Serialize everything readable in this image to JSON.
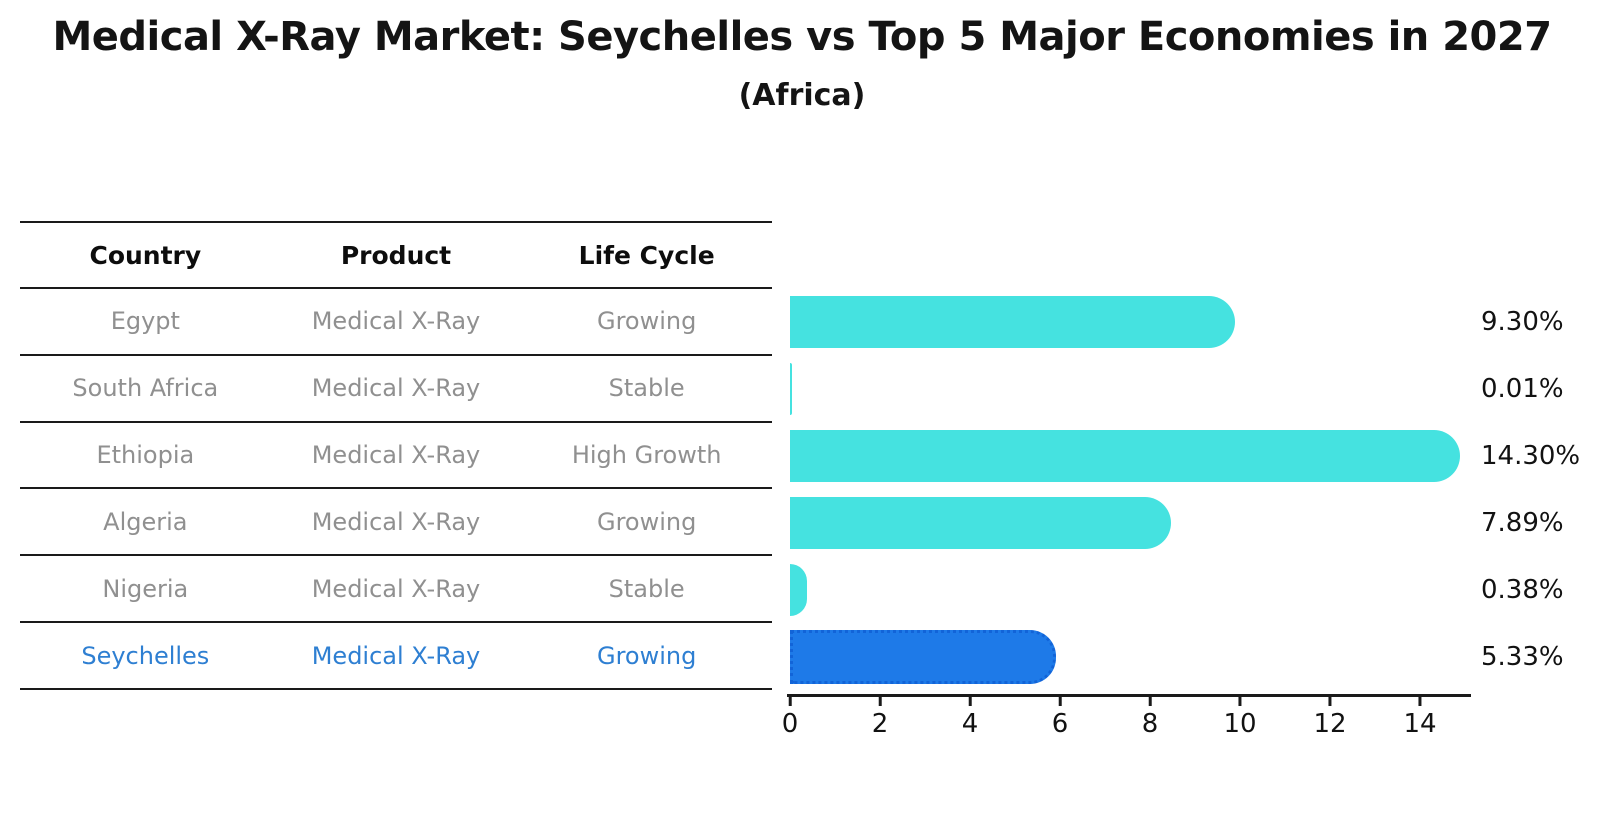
{
  "title": "Medical X-Ray Market: Seychelles vs Top 5 Major Economies in 2027",
  "subtitle": "(Africa)",
  "table": {
    "headers": [
      "Country",
      "Product",
      "Life Cycle"
    ],
    "rows": [
      {
        "country": "Egypt",
        "product": "Medical X-Ray",
        "life_cycle": "Growing",
        "highlighted": false
      },
      {
        "country": "South Africa",
        "product": "Medical X-Ray",
        "life_cycle": "Stable",
        "highlighted": false
      },
      {
        "country": "Ethiopia",
        "product": "Medical X-Ray",
        "life_cycle": "High Growth",
        "highlighted": false
      },
      {
        "country": "Algeria",
        "product": "Medical X-Ray",
        "life_cycle": "Growing",
        "highlighted": false
      },
      {
        "country": "Nigeria",
        "product": "Medical X-Ray",
        "life_cycle": "Stable",
        "highlighted": false
      },
      {
        "country": "Seychelles",
        "product": "Medical X-Ray",
        "life_cycle": "Growing",
        "highlighted": true
      }
    ]
  },
  "chart_data": {
    "type": "bar",
    "orientation": "horizontal",
    "title": "Medical X-Ray Market: Seychelles vs Top 5 Major Economies in 2027",
    "subtitle": "(Africa)",
    "categories": [
      "Egypt",
      "South Africa",
      "Ethiopia",
      "Algeria",
      "Nigeria",
      "Seychelles"
    ],
    "values": [
      9.3,
      0.01,
      14.3,
      7.89,
      0.38,
      5.33
    ],
    "value_labels": [
      "9.30%",
      "0.01%",
      "14.30%",
      "7.89%",
      "0.38%",
      "5.33%"
    ],
    "unit": "percent",
    "x_ticks": [
      0,
      2,
      4,
      6,
      8,
      10,
      12,
      14
    ],
    "xlim": [
      0,
      15
    ],
    "highlight_index": 5,
    "grid": false,
    "legend": false
  },
  "colors": {
    "bar_default": "#45E2E0",
    "bar_highlight": "#1E7AE8",
    "bar_highlight_border": "#1264D8",
    "row_text": "#909090",
    "highlight_text": "#2E7FD2",
    "axis_text": "#121212"
  }
}
